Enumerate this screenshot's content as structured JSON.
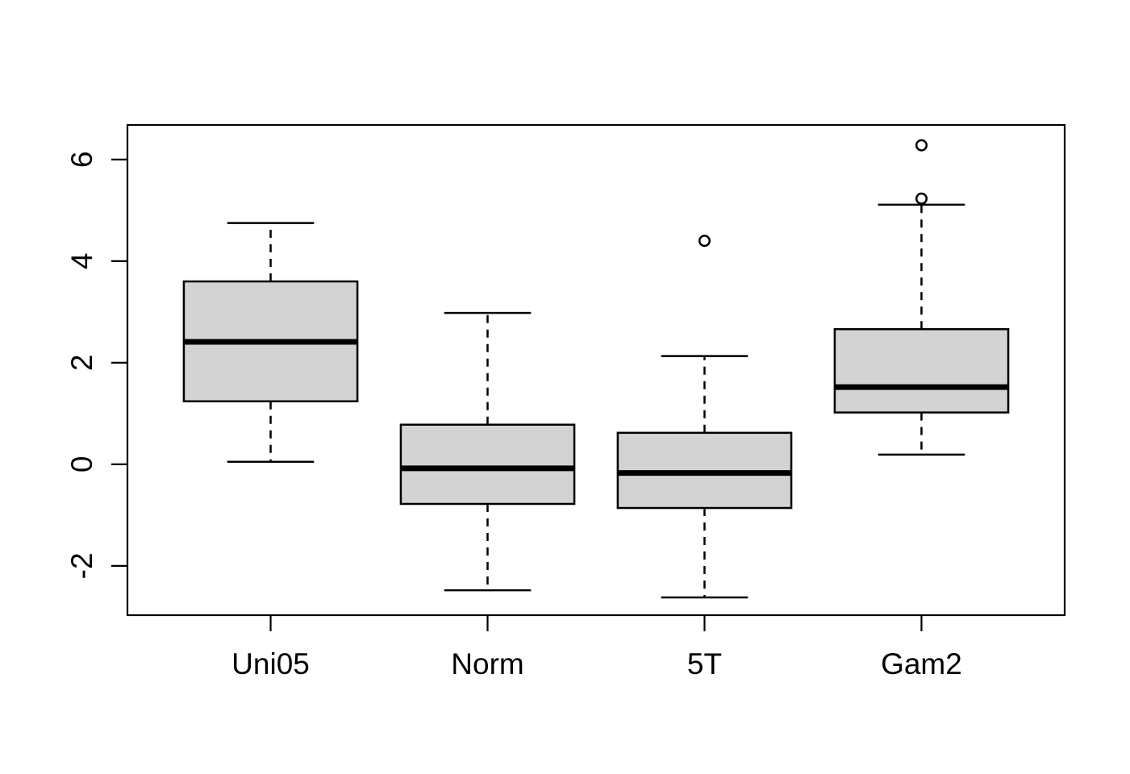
{
  "chart_data": {
    "type": "boxplot",
    "title": "",
    "xlabel": "",
    "ylabel": "",
    "categories": [
      "Uni05",
      "Norm",
      "5T",
      "Gam2"
    ],
    "groups": [
      {
        "label": "Uni05",
        "lower_whisker": 0.05,
        "q1": 1.24,
        "median": 2.41,
        "q3": 3.6,
        "upper_whisker": 4.75,
        "outliers": []
      },
      {
        "label": "Norm",
        "lower_whisker": -2.48,
        "q1": -0.78,
        "median": -0.08,
        "q3": 0.78,
        "upper_whisker": 2.98,
        "outliers": []
      },
      {
        "label": "5T",
        "lower_whisker": -2.62,
        "q1": -0.86,
        "median": -0.17,
        "q3": 0.62,
        "upper_whisker": 2.13,
        "outliers": [
          4.4
        ]
      },
      {
        "label": "Gam2",
        "lower_whisker": 0.19,
        "q1": 1.02,
        "median": 1.52,
        "q3": 2.66,
        "upper_whisker": 5.11,
        "outliers": [
          5.23,
          6.28
        ]
      }
    ],
    "y_axis": {
      "ticks": [
        -2,
        0,
        2,
        4,
        6
      ],
      "range": [
        -2.97,
        6.68
      ]
    },
    "x_axis": {
      "labels": [
        "Uni05",
        "Norm",
        "5T",
        "Gam2"
      ]
    },
    "legend": "none",
    "grid": false,
    "style": {
      "box_fill": "#d3d3d3",
      "stroke_color": "#000000",
      "background": "#ffffff"
    }
  }
}
